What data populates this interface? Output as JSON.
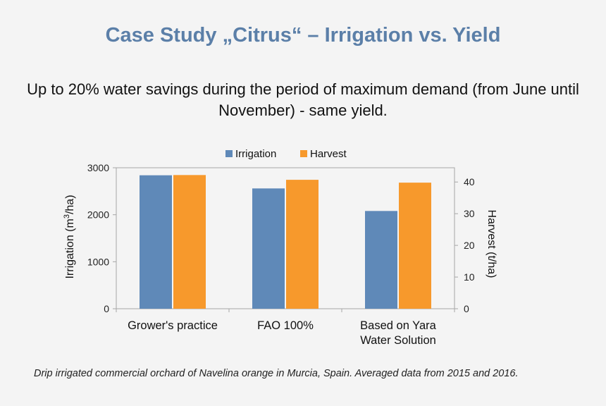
{
  "title": "Case Study „Citrus“ –  Irrigation vs. Yield",
  "subtitle_line1": "Up to 20% water savings during the period of maximum demand (from June until",
  "subtitle_line2": "November) - same yield.",
  "footnote": "Drip irrigated commercial orchard of Navelina orange in Murcia, Spain. Averaged data from 2015 and 2016.",
  "colors": {
    "irrigation": "#5f89b8",
    "harvest": "#f7992c",
    "axis": "#a6a6a6"
  },
  "chart_data": {
    "type": "bar",
    "categories": [
      [
        "Grower's practice"
      ],
      [
        "FAO 100%"
      ],
      [
        "Based on Yara",
        "Water Solution"
      ]
    ],
    "series": [
      {
        "name": "Irrigation",
        "axis": "left",
        "values": [
          2840,
          2560,
          2080
        ]
      },
      {
        "name": "Harvest",
        "axis": "right",
        "values": [
          42.2,
          40.7,
          39.8
        ]
      }
    ],
    "ylabel_left_prefix": "Irrigation  (m",
    "ylabel_left_sup": "3",
    "ylabel_left_suffix": "/ha)",
    "ylabel_right": "Harvest (t/ha)",
    "ylim_left": [
      0,
      3000
    ],
    "yticks_left": [
      "0",
      "1000",
      "2000",
      "3000"
    ],
    "ylim_right": [
      0,
      44.5
    ],
    "yticks_right": [
      "0",
      "10",
      "20",
      "30",
      "40"
    ],
    "legend_position": "top-center",
    "grid": false
  }
}
